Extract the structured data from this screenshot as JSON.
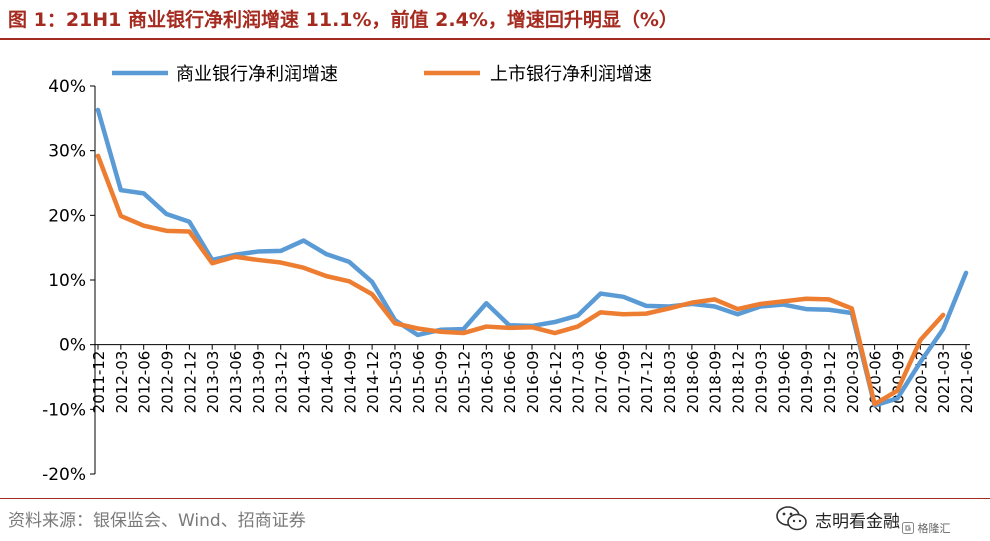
{
  "header": {
    "title": "图 1：21H1 商业银行净利润增速 11.1%，前值 2.4%，增速回升明显（%）"
  },
  "footer": {
    "source": "资料来源：银保监会、Wind、招商证券",
    "watermark_text": "志明看金融",
    "badge_text": "格隆汇"
  },
  "icons": {
    "watermark": "wechat-icon",
    "badge": "gelonghui-logo"
  },
  "colors": {
    "title": "#a52a1f",
    "series_blue": "#5b9bd5",
    "series_orange": "#ed7d31",
    "axis": "#000000"
  },
  "chart_data": {
    "type": "line",
    "title": "",
    "xlabel": "",
    "ylabel": "",
    "ylim": [
      -20,
      40
    ],
    "yticks": [
      -20,
      -10,
      0,
      10,
      20,
      30,
      40
    ],
    "ytick_labels": [
      "-20%",
      "-10%",
      "0%",
      "10%",
      "20%",
      "30%",
      "40%"
    ],
    "grid": false,
    "legend": "top",
    "categories": [
      "2011-12",
      "2012-03",
      "2012-06",
      "2012-09",
      "2012-12",
      "2013-03",
      "2013-06",
      "2013-09",
      "2013-12",
      "2014-03",
      "2014-06",
      "2014-09",
      "2014-12",
      "2015-03",
      "2015-06",
      "2015-09",
      "2015-12",
      "2016-03",
      "2016-06",
      "2016-09",
      "2016-12",
      "2017-03",
      "2017-06",
      "2017-09",
      "2017-12",
      "2018-03",
      "2018-06",
      "2018-09",
      "2018-12",
      "2019-03",
      "2019-06",
      "2019-09",
      "2019-12",
      "2020-03",
      "2020-06",
      "2020-09",
      "2020-12",
      "2021-03",
      "2021-06"
    ],
    "series": [
      {
        "name": "商业银行净利润增速",
        "color": "#5b9bd5",
        "values": [
          36.3,
          23.9,
          23.4,
          20.2,
          19.0,
          13.1,
          13.9,
          14.4,
          14.5,
          16.1,
          14.0,
          12.8,
          9.7,
          3.8,
          1.5,
          2.3,
          2.4,
          6.4,
          3.0,
          2.9,
          3.5,
          4.5,
          7.9,
          7.4,
          6.0,
          5.9,
          6.3,
          5.9,
          4.7,
          5.9,
          6.2,
          5.5,
          5.4,
          4.9,
          -9.4,
          -8.3,
          -2.7,
          2.4,
          11.1
        ]
      },
      {
        "name": "上市银行净利润增速",
        "color": "#ed7d31",
        "values": [
          29.2,
          19.9,
          18.4,
          17.6,
          17.5,
          12.6,
          13.6,
          13.1,
          12.7,
          11.9,
          10.6,
          9.8,
          7.8,
          3.3,
          2.5,
          2.0,
          1.8,
          2.8,
          2.6,
          2.7,
          1.8,
          2.8,
          5.0,
          4.7,
          4.8,
          5.6,
          6.5,
          7.0,
          5.5,
          6.3,
          6.7,
          7.1,
          7.0,
          5.6,
          -9.2,
          -7.1,
          0.7,
          4.6,
          null
        ]
      }
    ]
  }
}
